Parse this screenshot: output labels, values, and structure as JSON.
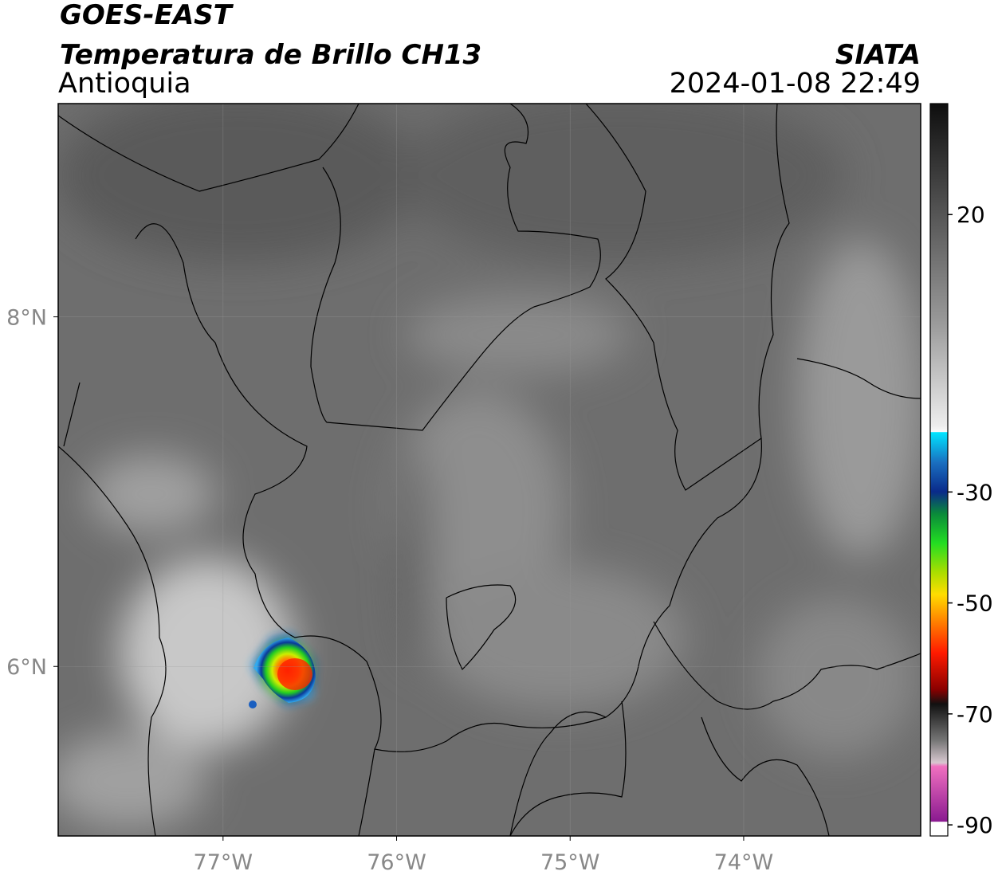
{
  "header": {
    "title": "GOES-EAST",
    "subtitle": "Temperatura de Brillo CH13",
    "region": "Antioquia",
    "source": "SIATA",
    "datetime": "2024-01-08 22:49"
  },
  "map": {
    "xlim": [
      -77.95,
      -72.98
    ],
    "ylim": [
      5.03,
      9.22
    ],
    "xticks": [
      {
        "value": -77,
        "label": "77°W"
      },
      {
        "value": -76,
        "label": "76°W"
      },
      {
        "value": -75,
        "label": "75°W"
      },
      {
        "value": -74,
        "label": "74°W"
      }
    ],
    "yticks": [
      {
        "value": 8,
        "label": "8°N"
      },
      {
        "value": 6,
        "label": "6°N"
      }
    ],
    "grid": true
  },
  "colorbar": {
    "lim": [
      -92,
      40
    ],
    "ticks": [
      20,
      -30,
      -50,
      -70,
      -90
    ]
  }
}
